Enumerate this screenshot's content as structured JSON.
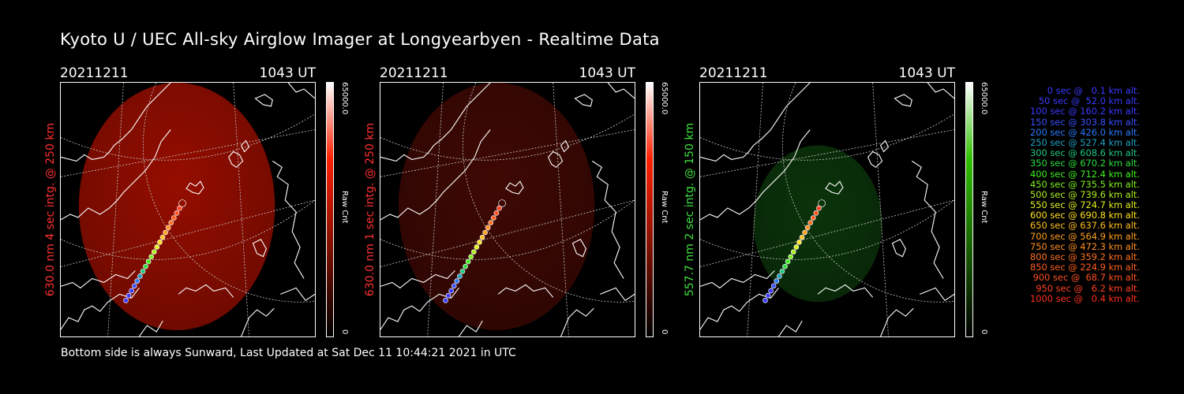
{
  "title": "Kyoto U / UEC All-sky Airglow Imager at Longyearbyen - Realtime Data",
  "footer": "Bottom side is always Sunward, Last Updated at Sat Dec 11 10:44:21 2021 in UTC",
  "panels": [
    {
      "date": "20211211",
      "time": "1043 UT",
      "label": "630.0 nm 4 sec intg. @ 250 km",
      "label_color": "#ff3030",
      "cbar_max": "65000.0",
      "cbar_min": "0",
      "cbar_title": "Raw Cnt",
      "cbar_color": "#ff2000",
      "disk_color": "#b01000",
      "disk_opacity": 0.85
    },
    {
      "date": "20211211",
      "time": "1043 UT",
      "label": "630.0 nm 1 sec intg. @ 250 km",
      "label_color": "#ff3030",
      "cbar_max": "65000.0",
      "cbar_min": "0",
      "cbar_title": "Raw Cnt",
      "cbar_color": "#ff2000",
      "disk_color": "#4a0a04",
      "disk_opacity": 0.85
    },
    {
      "date": "20211211",
      "time": "1043 UT",
      "label": "557.7 nm 2 sec intg. @ 150 km",
      "label_color": "#40e040",
      "cbar_max": "65000.0",
      "cbar_min": "0",
      "cbar_title": "Raw Cnt",
      "cbar_color": "#30c000",
      "disk_color": "#0c3a0c",
      "disk_opacity": 0.9
    }
  ],
  "legend": [
    {
      "text": "0 sec @   0.1 km alt.",
      "color": "#3a3aff"
    },
    {
      "text": "50 sec @  52.0 km alt.",
      "color": "#3a3aff"
    },
    {
      "text": "100 sec @ 160.2 km alt.",
      "color": "#3a3aff"
    },
    {
      "text": "150 sec @ 303.8 km alt.",
      "color": "#3a50ff"
    },
    {
      "text": "200 sec @ 426.0 km alt.",
      "color": "#2a7aff"
    },
    {
      "text": "250 sec @ 527.4 km alt.",
      "color": "#20a0c0"
    },
    {
      "text": "300 sec @ 608.6 km alt.",
      "color": "#20c880"
    },
    {
      "text": "350 sec @ 670.2 km alt.",
      "color": "#30e040"
    },
    {
      "text": "400 sec @ 712.4 km alt.",
      "color": "#40f020"
    },
    {
      "text": "450 sec @ 735.5 km alt.",
      "color": "#80f020"
    },
    {
      "text": "500 sec @ 739.6 km alt.",
      "color": "#b0f020"
    },
    {
      "text": "550 sec @ 724.7 km alt.",
      "color": "#e0f020"
    },
    {
      "text": "600 sec @ 690.8 km alt.",
      "color": "#ffe020"
    },
    {
      "text": "650 sec @ 637.6 km alt.",
      "color": "#ffc020"
    },
    {
      "text": "700 sec @ 564.9 km alt.",
      "color": "#ffa020"
    },
    {
      "text": "750 sec @ 472.3 km alt.",
      "color": "#ff9020"
    },
    {
      "text": "800 sec @ 359.2 km alt.",
      "color": "#ff7020"
    },
    {
      "text": "850 sec @ 224.9 km alt.",
      "color": "#ff6020"
    },
    {
      "text": "900 sec @  68.7 km alt.",
      "color": "#ff5020"
    },
    {
      "text": "950 sec @   6.2 km alt.",
      "color": "#ff4020"
    },
    {
      "text": "1000 sec @   0.4 km alt.",
      "color": "#ff3020"
    }
  ]
}
